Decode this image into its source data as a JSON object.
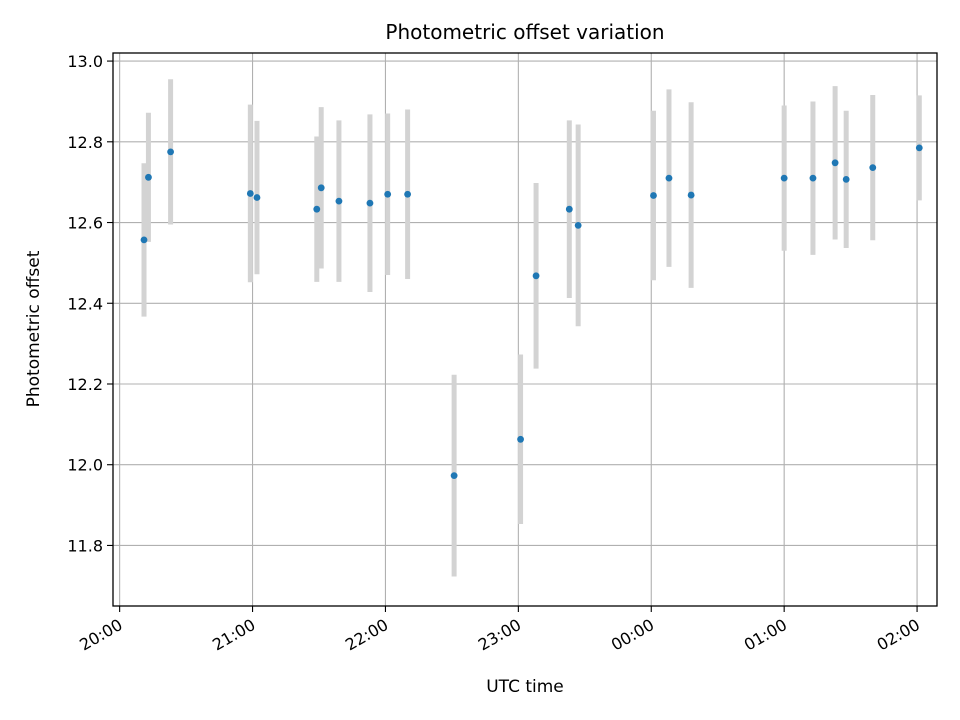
{
  "chart_data": {
    "type": "scatter",
    "title": "Photometric offset variation",
    "xlabel": "UTC time",
    "ylabel": "Photometric offset",
    "ylim": [
      11.65,
      13.02
    ],
    "xlim": [
      "19:57",
      "02:09"
    ],
    "grid": true,
    "x_ticks": [
      "20:00",
      "21:00",
      "22:00",
      "23:00",
      "00:00",
      "01:00",
      "02:00"
    ],
    "y_ticks": [
      "11.8",
      "12.0",
      "12.2",
      "12.4",
      "12.6",
      "12.8",
      "13.0"
    ],
    "colors": {
      "points": "#1f77b4",
      "error_bars": "#d3d3d3",
      "grid": "#b0b0b0"
    },
    "points": [
      {
        "x": "20:11",
        "y": 12.557,
        "err": 0.19
      },
      {
        "x": "20:13",
        "y": 12.712,
        "err": 0.16
      },
      {
        "x": "20:23",
        "y": 12.775,
        "err": 0.18
      },
      {
        "x": "20:59",
        "y": 12.672,
        "err": 0.22
      },
      {
        "x": "21:02",
        "y": 12.662,
        "err": 0.19
      },
      {
        "x": "21:29",
        "y": 12.633,
        "err": 0.18
      },
      {
        "x": "21:31",
        "y": 12.686,
        "err": 0.2
      },
      {
        "x": "21:39",
        "y": 12.653,
        "err": 0.2
      },
      {
        "x": "21:53",
        "y": 12.648,
        "err": 0.22
      },
      {
        "x": "22:01",
        "y": 12.67,
        "err": 0.2
      },
      {
        "x": "22:10",
        "y": 12.67,
        "err": 0.21
      },
      {
        "x": "22:31",
        "y": 11.973,
        "err": 0.25
      },
      {
        "x": "23:01",
        "y": 12.063,
        "err": 0.21
      },
      {
        "x": "23:08",
        "y": 12.468,
        "err": 0.23
      },
      {
        "x": "23:23",
        "y": 12.633,
        "err": 0.22
      },
      {
        "x": "23:27",
        "y": 12.593,
        "err": 0.25
      },
      {
        "x": "00:01",
        "y": 12.667,
        "err": 0.21
      },
      {
        "x": "00:08",
        "y": 12.71,
        "err": 0.22
      },
      {
        "x": "00:18",
        "y": 12.668,
        "err": 0.23
      },
      {
        "x": "01:00",
        "y": 12.71,
        "err": 0.18
      },
      {
        "x": "01:13",
        "y": 12.71,
        "err": 0.19
      },
      {
        "x": "01:23",
        "y": 12.748,
        "err": 0.19
      },
      {
        "x": "01:28",
        "y": 12.707,
        "err": 0.17
      },
      {
        "x": "01:40",
        "y": 12.736,
        "err": 0.18
      },
      {
        "x": "02:01",
        "y": 12.785,
        "err": 0.13
      }
    ]
  }
}
